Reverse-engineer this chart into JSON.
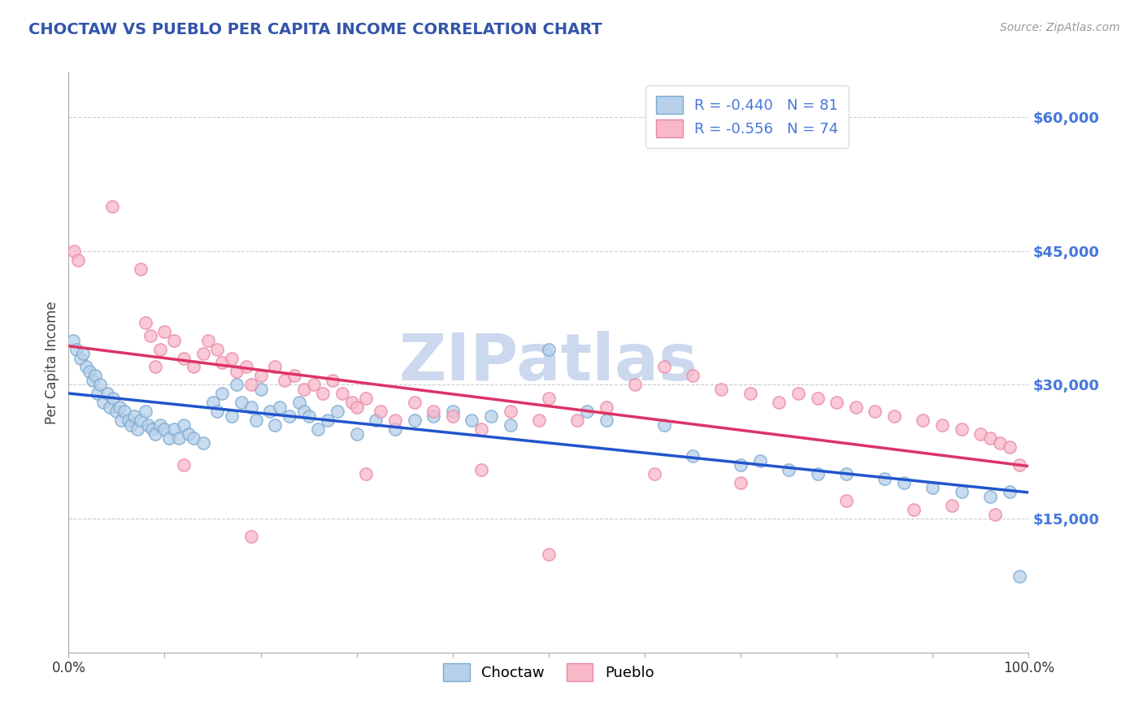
{
  "title": "CHOCTAW VS PUEBLO PER CAPITA INCOME CORRELATION CHART",
  "source": "Source: ZipAtlas.com",
  "ylabel": "Per Capita Income",
  "legend_choctaw": "Choctaw",
  "legend_pueblo": "Pueblo",
  "r_choctaw": -0.44,
  "n_choctaw": 81,
  "r_pueblo": -0.556,
  "n_pueblo": 74,
  "color_choctaw_face": "#b8d0ea",
  "color_choctaw_edge": "#7aaad0",
  "color_pueblo_face": "#f8b8c8",
  "color_pueblo_edge": "#e888a8",
  "color_line_choctaw": "#2255cc",
  "color_line_pueblo": "#dd3366",
  "color_title": "#3355aa",
  "color_yticks": "#4477dd",
  "color_source": "#999999",
  "watermark_color": "#ccd8ee",
  "ytick_values": [
    0,
    15000,
    30000,
    45000,
    60000
  ],
  "ytick_labels": [
    "",
    "$15,000",
    "$30,000",
    "$45,000",
    "$60,000"
  ],
  "xlim": [
    0,
    1
  ],
  "ylim": [
    0,
    65000
  ],
  "grid_color": "#cccccc",
  "background_color": "#ffffff",
  "choctaw_x": [
    0.005,
    0.008,
    0.012,
    0.015,
    0.018,
    0.022,
    0.025,
    0.028,
    0.03,
    0.033,
    0.036,
    0.04,
    0.043,
    0.046,
    0.05,
    0.053,
    0.055,
    0.058,
    0.062,
    0.065,
    0.068,
    0.072,
    0.075,
    0.08,
    0.083,
    0.087,
    0.09,
    0.095,
    0.1,
    0.105,
    0.11,
    0.115,
    0.12,
    0.125,
    0.13,
    0.14,
    0.15,
    0.155,
    0.16,
    0.17,
    0.175,
    0.18,
    0.19,
    0.195,
    0.2,
    0.21,
    0.215,
    0.22,
    0.23,
    0.24,
    0.245,
    0.25,
    0.26,
    0.27,
    0.28,
    0.3,
    0.32,
    0.34,
    0.36,
    0.38,
    0.4,
    0.42,
    0.44,
    0.46,
    0.5,
    0.54,
    0.56,
    0.62,
    0.65,
    0.7,
    0.72,
    0.75,
    0.78,
    0.81,
    0.85,
    0.87,
    0.9,
    0.93,
    0.96,
    0.98,
    0.99
  ],
  "choctaw_y": [
    35000,
    34000,
    33000,
    33500,
    32000,
    31500,
    30500,
    31000,
    29000,
    30000,
    28000,
    29000,
    27500,
    28500,
    27000,
    27500,
    26000,
    27000,
    26000,
    25500,
    26500,
    25000,
    26000,
    27000,
    25500,
    25000,
    24500,
    25500,
    25000,
    24000,
    25000,
    24000,
    25500,
    24500,
    24000,
    23500,
    28000,
    27000,
    29000,
    26500,
    30000,
    28000,
    27500,
    26000,
    29500,
    27000,
    25500,
    27500,
    26500,
    28000,
    27000,
    26500,
    25000,
    26000,
    27000,
    24500,
    26000,
    25000,
    26000,
    26500,
    27000,
    26000,
    26500,
    25500,
    34000,
    27000,
    26000,
    25500,
    22000,
    21000,
    21500,
    20500,
    20000,
    20000,
    19500,
    19000,
    18500,
    18000,
    17500,
    18000,
    8500
  ],
  "pueblo_x": [
    0.006,
    0.01,
    0.045,
    0.075,
    0.08,
    0.085,
    0.09,
    0.095,
    0.1,
    0.11,
    0.12,
    0.13,
    0.14,
    0.145,
    0.155,
    0.16,
    0.17,
    0.175,
    0.185,
    0.19,
    0.2,
    0.215,
    0.225,
    0.235,
    0.245,
    0.255,
    0.265,
    0.275,
    0.285,
    0.295,
    0.3,
    0.31,
    0.325,
    0.34,
    0.36,
    0.38,
    0.4,
    0.43,
    0.46,
    0.49,
    0.5,
    0.53,
    0.56,
    0.59,
    0.62,
    0.65,
    0.68,
    0.71,
    0.74,
    0.76,
    0.78,
    0.8,
    0.82,
    0.84,
    0.86,
    0.89,
    0.91,
    0.93,
    0.95,
    0.96,
    0.97,
    0.98,
    0.99,
    0.12,
    0.19,
    0.31,
    0.43,
    0.5,
    0.61,
    0.7,
    0.81,
    0.88,
    0.92,
    0.965
  ],
  "pueblo_y": [
    45000,
    44000,
    50000,
    43000,
    37000,
    35500,
    32000,
    34000,
    36000,
    35000,
    33000,
    32000,
    33500,
    35000,
    34000,
    32500,
    33000,
    31500,
    32000,
    30000,
    31000,
    32000,
    30500,
    31000,
    29500,
    30000,
    29000,
    30500,
    29000,
    28000,
    27500,
    28500,
    27000,
    26000,
    28000,
    27000,
    26500,
    25000,
    27000,
    26000,
    28500,
    26000,
    27500,
    30000,
    32000,
    31000,
    29500,
    29000,
    28000,
    29000,
    28500,
    28000,
    27500,
    27000,
    26500,
    26000,
    25500,
    25000,
    24500,
    24000,
    23500,
    23000,
    21000,
    21000,
    13000,
    20000,
    20500,
    11000,
    20000,
    19000,
    17000,
    16000,
    16500,
    15500
  ]
}
